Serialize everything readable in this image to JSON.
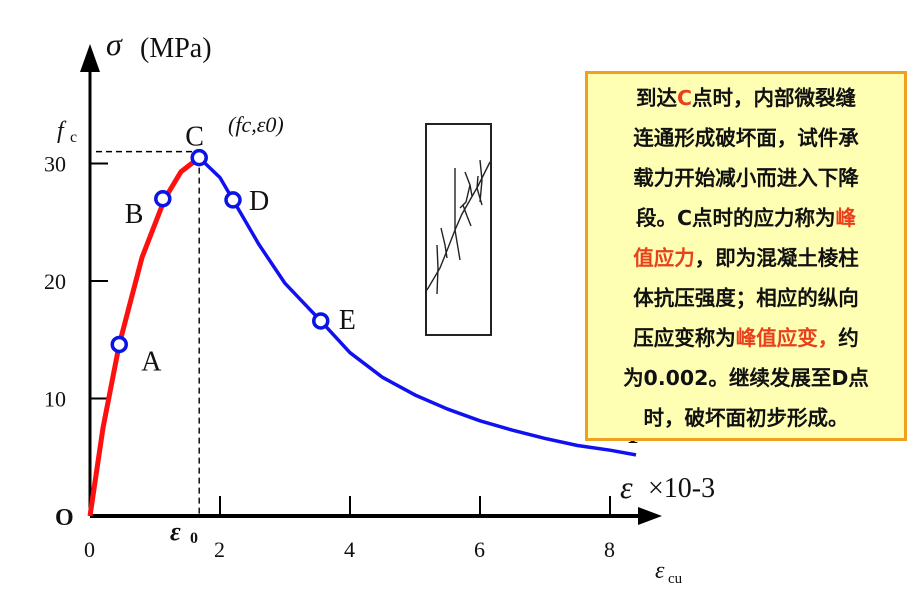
{
  "chart_data": {
    "type": "line",
    "ylabel_symbol": "σ",
    "ylabel_unit": "(MPa)",
    "xlabel_symbol": "ε",
    "xlabel_unit": "×10-3",
    "xlim": [
      0,
      8.6
    ],
    "ylim": [
      0,
      33
    ],
    "xticks": [
      "0",
      "2",
      "4",
      "6",
      "8"
    ],
    "xtick_values": [
      0,
      2,
      4,
      6,
      8
    ],
    "yticks": [
      "10",
      "20",
      "30"
    ],
    "ytick_values": [
      10,
      20,
      30
    ],
    "origin_label": "O",
    "fc_label": "f",
    "fc_sub": "c",
    "eps0_label": "ε",
    "eps0_sub": "0",
    "ecu_label": "ε",
    "ecu_sub": "cu",
    "peak_annotation": "(fc,ε0)",
    "ascending": {
      "color": "#FF1010",
      "x": [
        0,
        0.2,
        0.45,
        0.8,
        1.15,
        1.4,
        1.68
      ],
      "y": [
        0,
        7.5,
        14.6,
        22,
        27,
        29.3,
        30.5
      ]
    },
    "descending": {
      "color": "#1010F0",
      "x": [
        1.68,
        2.0,
        2.2,
        2.6,
        3.0,
        3.55,
        4.0,
        4.5,
        5.0,
        5.5,
        6.0,
        6.5,
        7.0,
        7.5,
        8.0,
        8.4
      ],
      "y": [
        30.5,
        28.8,
        26.9,
        23.1,
        19.8,
        16.6,
        13.9,
        11.8,
        10.3,
        9.1,
        8.1,
        7.3,
        6.6,
        6.0,
        5.6,
        5.2
      ]
    },
    "points": [
      {
        "label": "A",
        "x": 0.45,
        "y": 14.6
      },
      {
        "label": "B",
        "x": 1.12,
        "y": 27.0
      },
      {
        "label": "C",
        "x": 1.68,
        "y": 30.5
      },
      {
        "label": "D",
        "x": 2.2,
        "y": 26.9
      },
      {
        "label": "E",
        "x": 3.55,
        "y": 16.6
      },
      {
        "label": "F",
        "x": 8.4,
        "y": 5.2,
        "marker": false
      }
    ],
    "marker_color": "#0A14E6"
  },
  "note": {
    "lines": [
      [
        {
          "t": "到达"
        },
        {
          "t": "C",
          "hl": true
        },
        {
          "t": "点时，内部微裂缝"
        }
      ],
      [
        {
          "t": "连通形成破坏面，试件承"
        }
      ],
      [
        {
          "t": "载力开始减小而进入下降"
        }
      ],
      [
        {
          "t": "段。C点时的应力称为"
        },
        {
          "t": "峰",
          "hl": true
        }
      ],
      [
        {
          "t": "值应力",
          "hl": true
        },
        {
          "t": "，即为混凝土棱柱"
        }
      ],
      [
        {
          "t": "体抗压强度；相应的纵向"
        }
      ],
      [
        {
          "t": "压应变称为"
        },
        {
          "t": "峰值应变，",
          "hl": true
        },
        {
          "t": "约"
        }
      ],
      [
        {
          "t": "为0.002。继续发展至D点"
        }
      ],
      [
        {
          "t": "时，破坏面初步形成。"
        }
      ]
    ],
    "highlight_color": "#E8401C",
    "background": "#FFFFB4",
    "border_color": "#F0A020"
  },
  "specimen_icon": "cracked-prism-specimen"
}
